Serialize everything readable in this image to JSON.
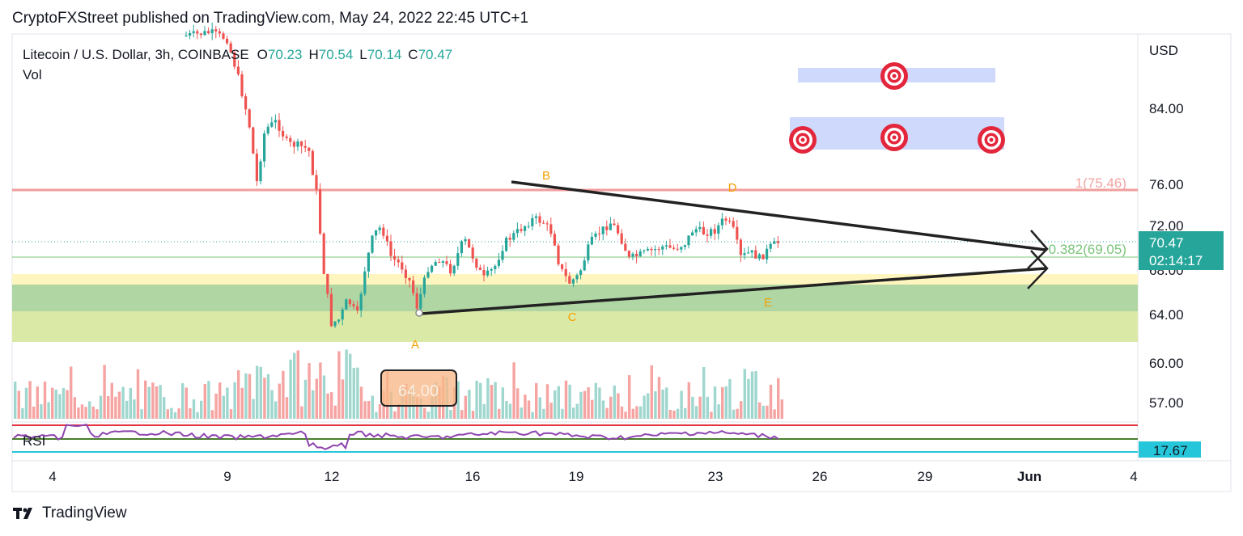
{
  "header": {
    "published": "CryptoFXStreet published on TradingView.com, May 24, 2022 22:45 UTC+1"
  },
  "footer": {
    "brand": "TradingView"
  },
  "colors": {
    "up": "#26a69a",
    "down": "#ef5350",
    "vol_up": "#9fd7cf",
    "vol_down": "#f5a4a2",
    "rsi_line": "#8e44ad",
    "level_red": "#f08c8c",
    "fib_green": "#7ac47a",
    "price_badge": "#26a69a",
    "rsi_badge": "#26c6da",
    "target_red": "#e3263b",
    "zone_blue": "#cfd9fb",
    "zone_green": "#b0d6a4",
    "zone_lime": "#dbe9a6",
    "zone_yellow": "#fff6bf",
    "label_orange": "#f5a000"
  },
  "chart_data": {
    "type": "candlestick",
    "title": "Litecoin / U.S. Dollar, 3h, COINBASE",
    "ohlc": {
      "o_label": "O",
      "o": "70.23",
      "h_label": "H",
      "h": "70.54",
      "l_label": "L",
      "l": "70.14",
      "c_label": "C",
      "c": "70.47"
    },
    "volume_label": "Vol",
    "currency": "USD",
    "y_ticks": [
      "84.00",
      "76.00",
      "72.00",
      "68.00",
      "64.00",
      "60.00",
      "57.00"
    ],
    "x_ticks": [
      "4",
      "9",
      "12",
      "16",
      "19",
      "23",
      "26",
      "29",
      "Jun",
      "4"
    ],
    "current_price": "70.47",
    "countdown": "02:14:17",
    "levels": [
      {
        "label": "1(75.46)",
        "value": 75.46
      },
      {
        "label": "0.382(69.05)",
        "value": 69.05
      }
    ],
    "pattern_labels": [
      "A",
      "B",
      "C",
      "D",
      "E"
    ],
    "price_box_label": "64.00",
    "rsi": {
      "label": "RSI",
      "value": "17.67"
    }
  }
}
